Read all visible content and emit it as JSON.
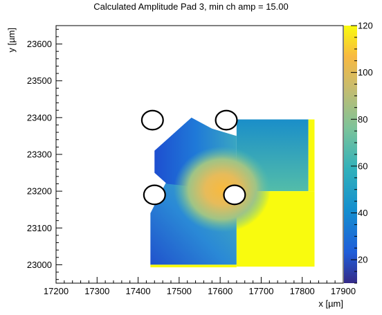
{
  "chart_data": {
    "type": "heatmap",
    "title": "Calculated Amplitude Pad 3, min ch amp = 15.00",
    "xlabel": "x [µm]",
    "ylabel": "y [µm]",
    "xlim": [
      17200,
      17900
    ],
    "ylim": [
      22950,
      23650
    ],
    "x_ticks": [
      17200,
      17300,
      17400,
      17500,
      17600,
      17700,
      17800,
      17900
    ],
    "y_ticks": [
      23000,
      23100,
      23200,
      23300,
      23400,
      23500,
      23600
    ],
    "color_scale": {
      "min": 10,
      "max": 120,
      "ticks": [
        20,
        40,
        60,
        80,
        100,
        120
      ],
      "colors": [
        "#352a87",
        "#1f5dd9",
        "#148ecf",
        "#30b0bb",
        "#7bc39a",
        "#c8bc6e",
        "#f8b941",
        "#f9fb0e"
      ]
    },
    "regions": [
      {
        "name": "upper-left-hex",
        "amp_range": [
          15,
          30
        ]
      },
      {
        "name": "lower-left",
        "amp_range": [
          15,
          70
        ]
      },
      {
        "name": "center-near-pad",
        "amp_range": [
          90,
          115
        ]
      },
      {
        "name": "upper-right",
        "amp_range": [
          35,
          60
        ]
      },
      {
        "name": "right-strip",
        "amp_range": [
          120,
          120
        ]
      },
      {
        "name": "lower-right",
        "amp_range": [
          120,
          120
        ]
      }
    ],
    "pads": [
      {
        "x": 17435,
        "y": 23393,
        "r": 26
      },
      {
        "x": 17615,
        "y": 23393,
        "r": 26
      },
      {
        "x": 17440,
        "y": 23190,
        "r": 26
      },
      {
        "x": 17635,
        "y": 23190,
        "r": 26
      }
    ]
  }
}
